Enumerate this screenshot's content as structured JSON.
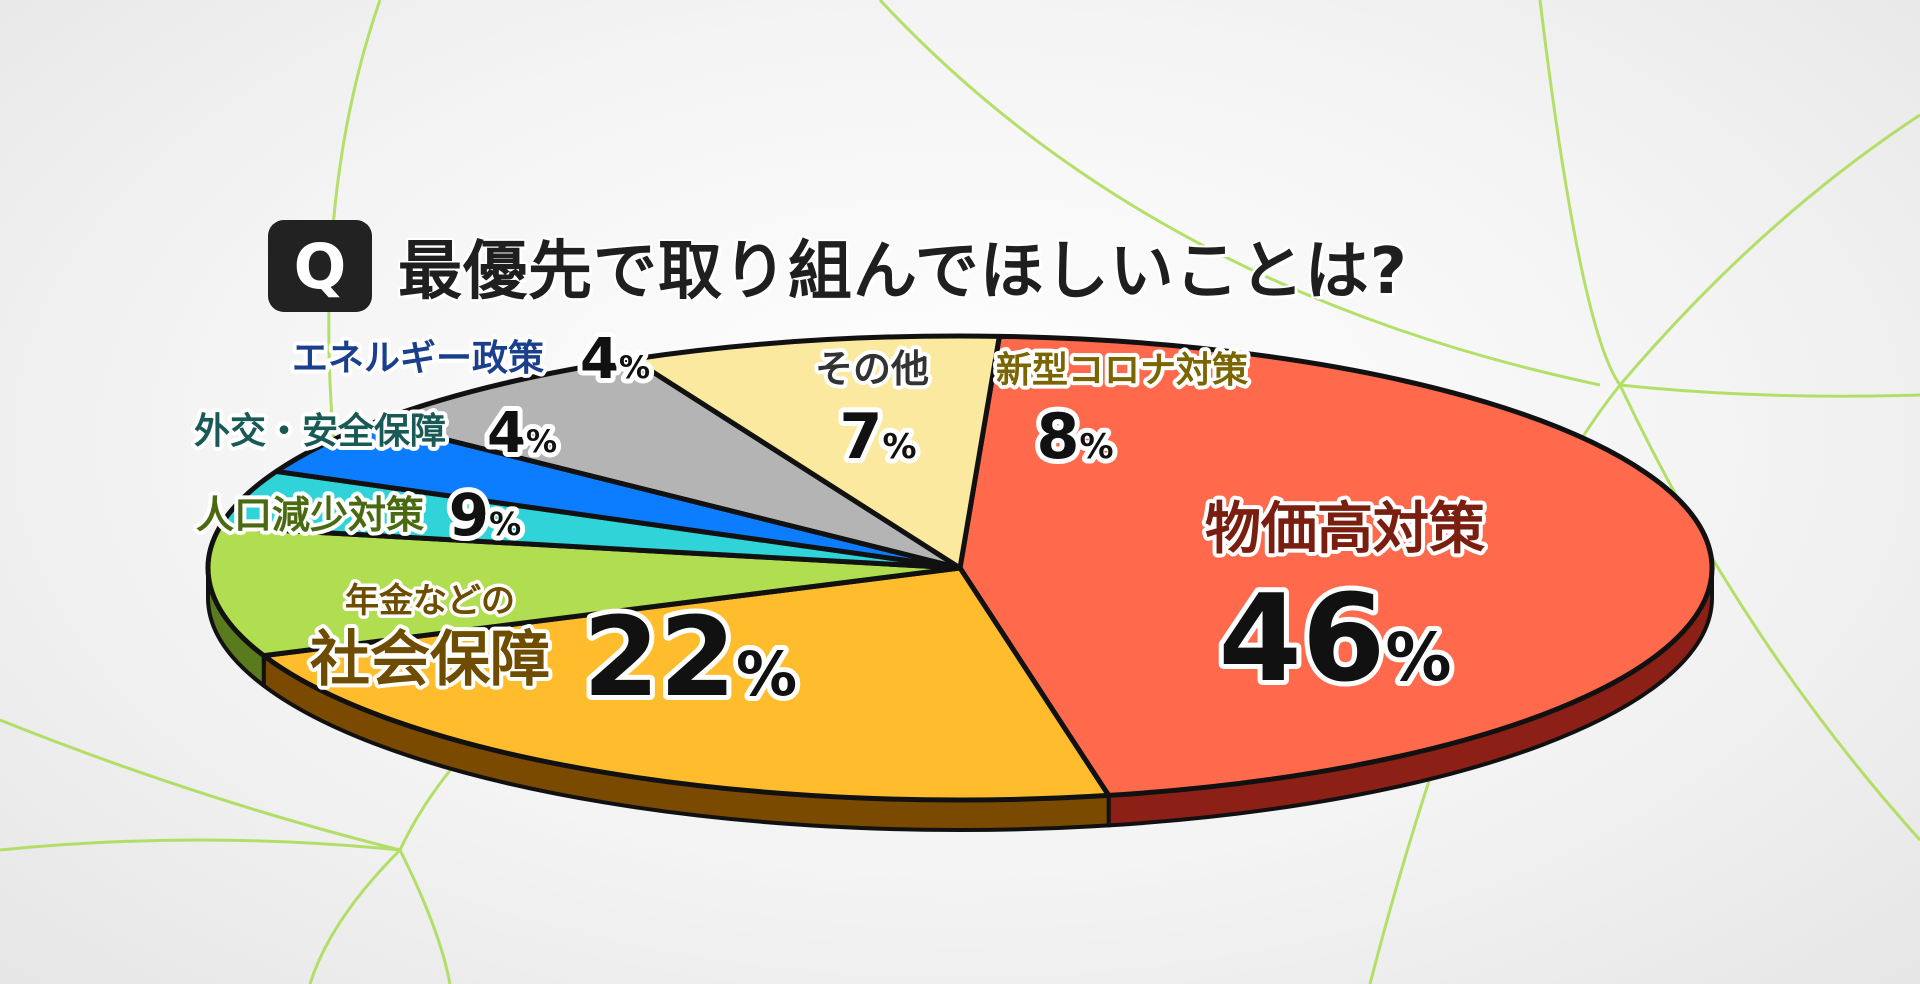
{
  "title": {
    "badge": "Q",
    "text": "最優先で取り組んでほしいことは?"
  },
  "colors": {
    "background_line": "#a8dc50",
    "outline": "#111111"
  },
  "chart_data": {
    "type": "pie",
    "title": "最優先で取り組んでほしいことは?",
    "unit": "%",
    "slices": [
      {
        "label": "物価高対策",
        "sublabel": "",
        "value": 46,
        "color": "#ff6a4d",
        "side": "#8c2016",
        "label_color": "#7a1e10"
      },
      {
        "label": "社会保障",
        "sublabel": "年金などの",
        "value": 22,
        "color": "#ffbd2e",
        "side": "#7a4a00",
        "label_color": "#6e4c00"
      },
      {
        "label": "人口減少対策",
        "sublabel": "",
        "value": 9,
        "color": "#b0de50",
        "side": "#5a7a1e",
        "label_color": "#4a6a12"
      },
      {
        "label": "外交・安全保障",
        "sublabel": "",
        "value": 4,
        "color": "#2fd3d8",
        "side": "#137075",
        "label_color": "#1a5a56"
      },
      {
        "label": "エネルギー政策",
        "sublabel": "",
        "value": 4,
        "color": "#0c7dff",
        "side": "#06397a",
        "label_color": "#1a3f8c"
      },
      {
        "label": "その他",
        "sublabel": "",
        "value": 7,
        "color": "#b4b4b4",
        "side": "#555555",
        "label_color": "#333333"
      },
      {
        "label": "新型コロナ対策",
        "sublabel": "",
        "value": 8,
        "color": "#fae99e",
        "side": "#8c7a30",
        "label_color": "#7a6500"
      }
    ]
  }
}
